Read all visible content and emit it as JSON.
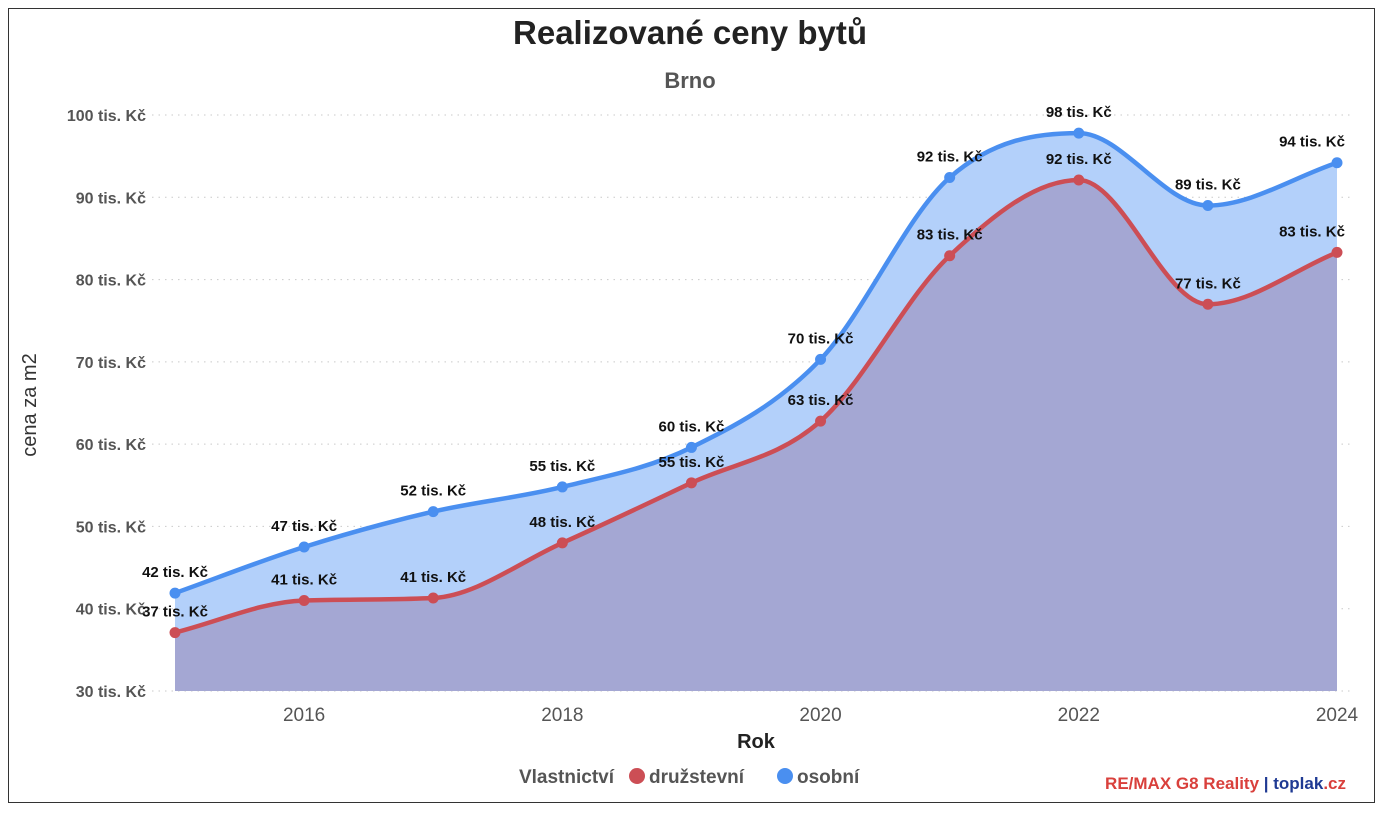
{
  "chart_data": {
    "type": "area",
    "title": "Realizované ceny bytů",
    "subtitle": "Brno",
    "xlabel": "Rok",
    "ylabel": "cena za m2",
    "x": [
      2015,
      2016,
      2017,
      2018,
      2019,
      2020,
      2021,
      2022,
      2023,
      2024
    ],
    "x_ticks": [
      "2016",
      "2018",
      "2020",
      "2022",
      "2024"
    ],
    "y_ticks": [
      "30 tis. Kč",
      "40 tis. Kč",
      "50 tis. Kč",
      "60 tis. Kč",
      "70 tis. Kč",
      "80 tis. Kč",
      "90 tis. Kč",
      "100 tis. Kč"
    ],
    "ylim": [
      30,
      100
    ],
    "grid": "horizontal dotted",
    "legend_placement": "bottom-center",
    "legend_title": "Vlastnictví",
    "series": [
      {
        "name": "osobní",
        "color": "#4a8ff0",
        "fill": "#b3d0fa",
        "values": [
          41.9,
          47.5,
          51.8,
          54.8,
          59.6,
          70.3,
          92.4,
          97.8,
          89.0,
          94.2
        ],
        "labels": [
          "42 tis. Kč",
          "47 tis. Kč",
          "52 tis. Kč",
          "55 tis. Kč",
          "60 tis. Kč",
          "70 tis. Kč",
          "92 tis. Kč",
          "98 tis. Kč",
          "89 tis. Kč",
          "94 tis. Kč"
        ]
      },
      {
        "name": "družstevní",
        "color": "#cc4e55",
        "fill": "#a4a7d3",
        "values": [
          37.1,
          41.0,
          41.3,
          48.0,
          55.3,
          62.8,
          82.9,
          92.1,
          77.0,
          83.3
        ],
        "labels": [
          "37 tis. Kč",
          "41 tis. Kč",
          "41 tis. Kč",
          "48 tis. Kč",
          "55 tis. Kč",
          "63 tis. Kč",
          "83 tis. Kč",
          "92 tis. Kč",
          "77 tis. Kč",
          "83 tis. Kč"
        ]
      }
    ]
  },
  "branding": {
    "part1": "RE/MAX G8 Reality",
    "separator": " | ",
    "part2": "toplak",
    "part3": ".cz",
    "color1": "#d9403c",
    "color2": "#1f3a93"
  }
}
